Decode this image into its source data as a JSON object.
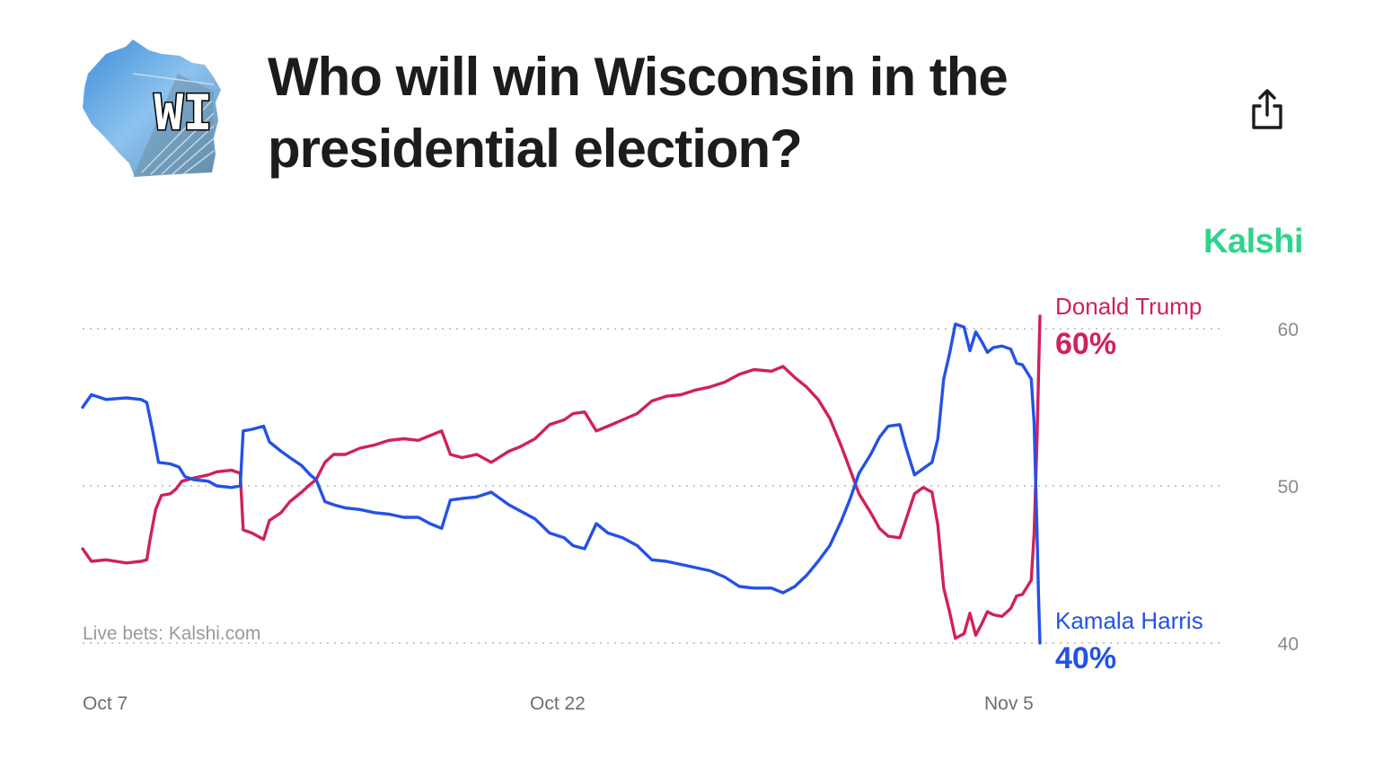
{
  "header": {
    "title": "Who will win Wisconsin in the presidential election?",
    "logo_text": "WI",
    "share_icon": "share-icon"
  },
  "brand": "Kalshi",
  "chart_data": {
    "type": "line",
    "title": "Who will win Wisconsin in the presidential election?",
    "source_note": "Live bets: Kalshi.com",
    "xlabel": "",
    "ylabel": "",
    "x_ticks": [
      "Oct 7",
      "Oct 22",
      "Nov 5"
    ],
    "y_ticks": [
      60,
      50,
      40
    ],
    "ylim": [
      40,
      60
    ],
    "x_range_days": [
      0,
      30
    ],
    "grid": true,
    "series": [
      {
        "name": "Donald Trump",
        "final_label": "60%",
        "color": "#d0215a",
        "points": [
          [
            0,
            46
          ],
          [
            0.3,
            45.2
          ],
          [
            0.8,
            45.3
          ],
          [
            1.5,
            45.1
          ],
          [
            2,
            45.2
          ],
          [
            2.2,
            45.3
          ],
          [
            2.3,
            46.5
          ],
          [
            2.5,
            48.5
          ],
          [
            2.7,
            49.4
          ],
          [
            3.0,
            49.5
          ],
          [
            3.2,
            49.8
          ],
          [
            3.4,
            50.3
          ],
          [
            3.8,
            50.5
          ],
          [
            4.3,
            50.7
          ],
          [
            4.6,
            50.9
          ],
          [
            5.1,
            51.0
          ],
          [
            5.4,
            50.8
          ],
          [
            5.5,
            47.2
          ],
          [
            5.8,
            47.0
          ],
          [
            6.2,
            46.6
          ],
          [
            6.4,
            47.8
          ],
          [
            6.8,
            48.3
          ],
          [
            7.1,
            49.0
          ],
          [
            7.5,
            49.6
          ],
          [
            7.8,
            50.1
          ],
          [
            8.0,
            50.4
          ],
          [
            8.3,
            51.5
          ],
          [
            8.6,
            52.0
          ],
          [
            9.0,
            52.0
          ],
          [
            9.5,
            52.4
          ],
          [
            10.0,
            52.6
          ],
          [
            10.5,
            52.9
          ],
          [
            11.0,
            53.0
          ],
          [
            11.5,
            52.9
          ],
          [
            11.9,
            53.2
          ],
          [
            12.3,
            53.5
          ],
          [
            12.6,
            52.0
          ],
          [
            13.0,
            51.8
          ],
          [
            13.5,
            52.0
          ],
          [
            14.0,
            51.5
          ],
          [
            14.6,
            52.2
          ],
          [
            15.0,
            52.5
          ],
          [
            15.5,
            53.0
          ],
          [
            16.0,
            53.9
          ],
          [
            16.5,
            54.2
          ],
          [
            16.8,
            54.6
          ],
          [
            17.2,
            54.7
          ],
          [
            17.6,
            53.5
          ],
          [
            18.0,
            53.8
          ],
          [
            18.5,
            54.2
          ],
          [
            19.0,
            54.6
          ],
          [
            19.5,
            55.4
          ],
          [
            20.0,
            55.7
          ],
          [
            20.5,
            55.8
          ],
          [
            21.0,
            56.1
          ],
          [
            21.5,
            56.3
          ],
          [
            22.0,
            56.6
          ],
          [
            22.5,
            57.1
          ],
          [
            23.0,
            57.4
          ],
          [
            23.6,
            57.3
          ],
          [
            24.0,
            57.6
          ],
          [
            24.4,
            56.9
          ],
          [
            24.8,
            56.3
          ],
          [
            25.2,
            55.5
          ],
          [
            25.6,
            54.3
          ],
          [
            26.0,
            52.5
          ],
          [
            26.3,
            51.0
          ],
          [
            26.6,
            49.5
          ],
          [
            27.0,
            48.3
          ],
          [
            27.3,
            47.3
          ],
          [
            27.6,
            46.8
          ],
          [
            28.0,
            46.7
          ],
          [
            28.2,
            47.8
          ],
          [
            28.5,
            49.5
          ],
          [
            28.8,
            49.9
          ],
          [
            29.1,
            49.6
          ],
          [
            29.3,
            47.5
          ],
          [
            29.5,
            43.5
          ],
          [
            29.7,
            42.0
          ],
          [
            29.9,
            40.3
          ],
          [
            30.2,
            40.6
          ],
          [
            30.4,
            41.9
          ],
          [
            30.6,
            40.5
          ],
          [
            30.8,
            41.2
          ],
          [
            31.0,
            42.0
          ],
          [
            31.2,
            41.8
          ],
          [
            31.5,
            41.7
          ],
          [
            31.8,
            42.2
          ],
          [
            32.0,
            43.0
          ],
          [
            32.2,
            43.1
          ],
          [
            32.5,
            44.0
          ],
          [
            32.6,
            47.0
          ],
          [
            32.65,
            50.0
          ],
          [
            32.7,
            53.0
          ],
          [
            32.75,
            57.0
          ],
          [
            32.8,
            60.8
          ]
        ]
      },
      {
        "name": "Kamala Harris",
        "final_label": "40%",
        "color": "#2452e6",
        "points": [
          [
            0,
            55
          ],
          [
            0.3,
            55.8
          ],
          [
            0.8,
            55.5
          ],
          [
            1.5,
            55.6
          ],
          [
            2,
            55.5
          ],
          [
            2.2,
            55.3
          ],
          [
            2.4,
            53.5
          ],
          [
            2.6,
            51.5
          ],
          [
            3.0,
            51.4
          ],
          [
            3.3,
            51.2
          ],
          [
            3.5,
            50.6
          ],
          [
            3.8,
            50.4
          ],
          [
            4.3,
            50.3
          ],
          [
            4.6,
            50.0
          ],
          [
            5.1,
            49.9
          ],
          [
            5.4,
            50.0
          ],
          [
            5.5,
            53.5
          ],
          [
            5.8,
            53.6
          ],
          [
            6.2,
            53.8
          ],
          [
            6.4,
            52.8
          ],
          [
            6.8,
            52.2
          ],
          [
            7.1,
            51.8
          ],
          [
            7.5,
            51.3
          ],
          [
            7.8,
            50.7
          ],
          [
            8.0,
            50.4
          ],
          [
            8.3,
            49.0
          ],
          [
            8.6,
            48.8
          ],
          [
            9.0,
            48.6
          ],
          [
            9.5,
            48.5
          ],
          [
            10.0,
            48.3
          ],
          [
            10.5,
            48.2
          ],
          [
            11.0,
            48.0
          ],
          [
            11.5,
            48.0
          ],
          [
            11.9,
            47.6
          ],
          [
            12.3,
            47.3
          ],
          [
            12.6,
            49.1
          ],
          [
            13.0,
            49.2
          ],
          [
            13.5,
            49.3
          ],
          [
            14.0,
            49.6
          ],
          [
            14.6,
            48.8
          ],
          [
            15.0,
            48.4
          ],
          [
            15.5,
            47.9
          ],
          [
            16.0,
            47.0
          ],
          [
            16.5,
            46.7
          ],
          [
            16.8,
            46.2
          ],
          [
            17.2,
            46.0
          ],
          [
            17.6,
            47.6
          ],
          [
            18.0,
            47.0
          ],
          [
            18.5,
            46.7
          ],
          [
            19.0,
            46.2
          ],
          [
            19.5,
            45.3
          ],
          [
            20.0,
            45.2
          ],
          [
            20.5,
            45.0
          ],
          [
            21.0,
            44.8
          ],
          [
            21.5,
            44.6
          ],
          [
            22.0,
            44.2
          ],
          [
            22.5,
            43.6
          ],
          [
            23.0,
            43.5
          ],
          [
            23.6,
            43.5
          ],
          [
            24.0,
            43.2
          ],
          [
            24.4,
            43.6
          ],
          [
            24.8,
            44.3
          ],
          [
            25.2,
            45.2
          ],
          [
            25.6,
            46.2
          ],
          [
            26.0,
            47.8
          ],
          [
            26.3,
            49.2
          ],
          [
            26.6,
            50.8
          ],
          [
            27.0,
            52.0
          ],
          [
            27.3,
            53.1
          ],
          [
            27.6,
            53.8
          ],
          [
            28.0,
            53.9
          ],
          [
            28.2,
            52.5
          ],
          [
            28.5,
            50.7
          ],
          [
            28.8,
            51.1
          ],
          [
            29.1,
            51.5
          ],
          [
            29.3,
            53.0
          ],
          [
            29.5,
            56.8
          ],
          [
            29.7,
            58.4
          ],
          [
            29.9,
            60.3
          ],
          [
            30.2,
            60.1
          ],
          [
            30.4,
            58.6
          ],
          [
            30.6,
            59.8
          ],
          [
            30.8,
            59.2
          ],
          [
            31.0,
            58.5
          ],
          [
            31.2,
            58.8
          ],
          [
            31.5,
            58.9
          ],
          [
            31.8,
            58.7
          ],
          [
            32.0,
            57.8
          ],
          [
            32.2,
            57.7
          ],
          [
            32.5,
            56.8
          ],
          [
            32.6,
            54.0
          ],
          [
            32.65,
            50.5
          ],
          [
            32.7,
            47.0
          ],
          [
            32.75,
            43.0
          ],
          [
            32.8,
            40.0
          ]
        ]
      }
    ],
    "annotations": [
      "Donald Trump",
      "60%",
      "Kamala Harris",
      "40%"
    ]
  }
}
